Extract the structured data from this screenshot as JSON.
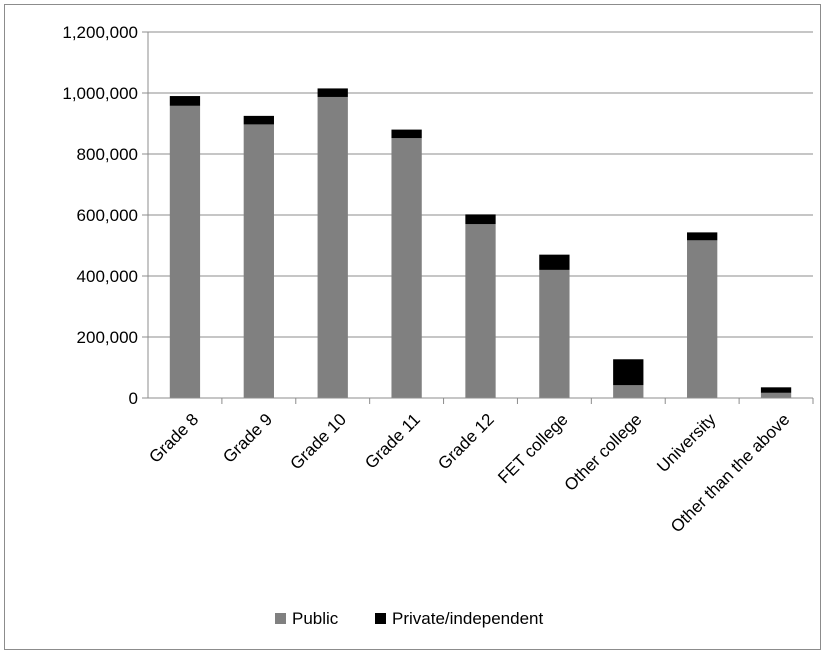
{
  "chart_data": {
    "type": "bar",
    "stacked": true,
    "categories": [
      "Grade 8",
      "Grade 9",
      "Grade 10",
      "Grade 11",
      "Grade 12",
      "FET college",
      "Other college",
      "University",
      "Other than the above"
    ],
    "series": [
      {
        "name": "Public",
        "color": "#808080",
        "values": [
          958000,
          897000,
          987000,
          852000,
          570000,
          420000,
          42000,
          517000,
          17000
        ]
      },
      {
        "name": "Private/independent",
        "color": "#000000",
        "values": [
          32000,
          28000,
          28000,
          28000,
          32000,
          50000,
          85000,
          26000,
          18000
        ]
      }
    ],
    "yticks": [
      "0",
      "200,000",
      "400,000",
      "600,000",
      "800,000",
      "1,000,000",
      "1,200,000"
    ],
    "ylim": [
      0,
      1200000
    ],
    "grid": true,
    "legend_position": "bottom"
  }
}
